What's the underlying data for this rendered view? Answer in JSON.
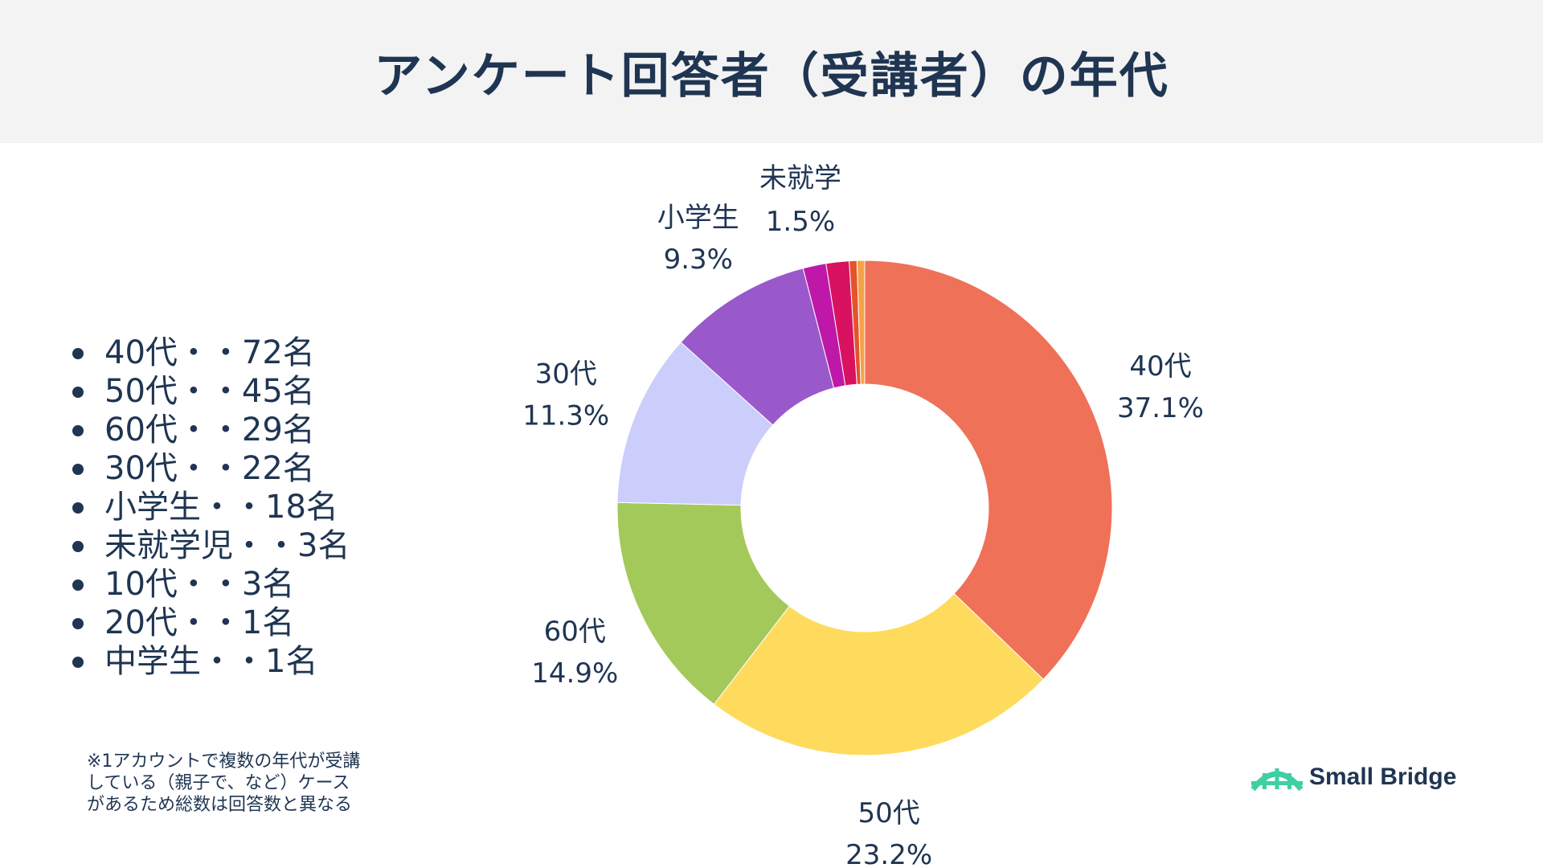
{
  "title": "アンケート回答者（受講者）の年代",
  "legend_items": [
    "40代・・72名",
    "50代・・45名",
    "60代・・29名",
    "30代・・22名",
    "小学生・・18名",
    "未就学児・・3名",
    "10代・・3名",
    "20代・・1名",
    "中学生・・1名"
  ],
  "footnote_lines": [
    "※1アカウントで複数の年代が受講",
    "している（親子で、など）ケース",
    "があるため総数は回答数と異なる"
  ],
  "brand": {
    "name": "Small Bridge",
    "icon": "bridge-icon",
    "color": "#3ecfa2"
  },
  "chart_data": {
    "type": "pie",
    "hole": 0.5,
    "direction": "clockwise",
    "start": "top",
    "slices": [
      {
        "label": "40代",
        "value": 37.1,
        "color": "#ef7158",
        "text": "40代",
        "pct": "37.1%"
      },
      {
        "label": "50代",
        "value": 23.2,
        "color": "#ffdb5d",
        "text": "50代",
        "pct": "23.2%"
      },
      {
        "label": "60代",
        "value": 14.9,
        "color": "#a2c95a",
        "text": "60代",
        "pct": "14.9%"
      },
      {
        "label": "30代",
        "value": 11.3,
        "color": "#cbcdfb",
        "text": "30代",
        "pct": "11.3%"
      },
      {
        "label": "小学生",
        "value": 9.3,
        "color": "#9a59cb",
        "text": "小学生",
        "pct": "9.3%"
      },
      {
        "label": "未就学児",
        "value": 1.5,
        "color": "#bf18a8",
        "text": "",
        "pct": ""
      },
      {
        "label": "10代",
        "value": 1.5,
        "color": "#d81260",
        "text": "",
        "pct": ""
      },
      {
        "label": "20代",
        "value": 0.5,
        "color": "#e5532b",
        "text": "",
        "pct": ""
      },
      {
        "label": "中学生",
        "value": 0.5,
        "color": "#f4a24a",
        "text": "",
        "pct": ""
      }
    ],
    "callout": {
      "text": "未就学",
      "pct": "1.5%"
    }
  }
}
